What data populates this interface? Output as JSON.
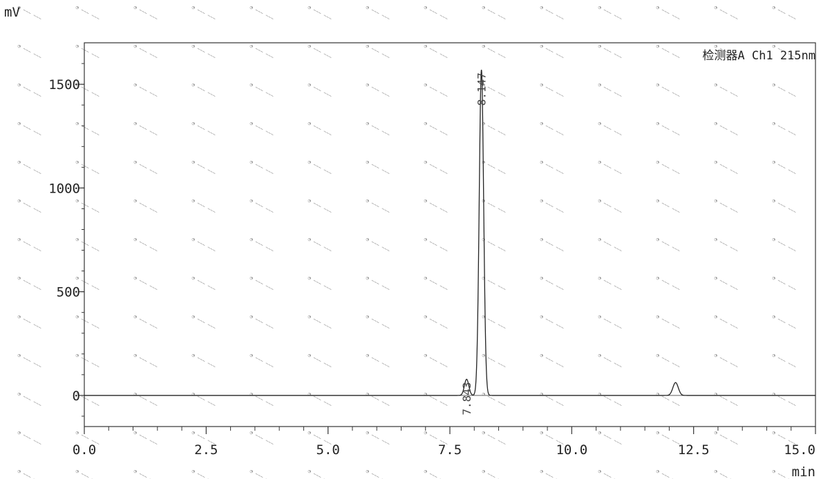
{
  "chart_data": {
    "type": "line",
    "ylabel": "mV",
    "xlabel": "min",
    "detector_label": "检测器A Ch1 215nm",
    "xlim": [
      0,
      15
    ],
    "ylim": [
      -150,
      1700
    ],
    "x_ticks": [
      "0.0",
      "2.5",
      "5.0",
      "7.5",
      "10.0",
      "12.5",
      "15.0"
    ],
    "x_tick_values": [
      0,
      2.5,
      5,
      7.5,
      10,
      12.5,
      15
    ],
    "y_ticks": [
      "0",
      "500",
      "1000",
      "1500"
    ],
    "y_tick_values": [
      0,
      500,
      1000,
      1500
    ],
    "baseline": 0,
    "peaks": [
      {
        "retention_time": 7.843,
        "label": "7.843",
        "height": 78,
        "width": 0.045
      },
      {
        "retention_time": 8.147,
        "label": "8.147",
        "height": 1570,
        "width": 0.045
      },
      {
        "retention_time": 12.13,
        "label": "",
        "height": 62,
        "width": 0.055
      }
    ]
  }
}
